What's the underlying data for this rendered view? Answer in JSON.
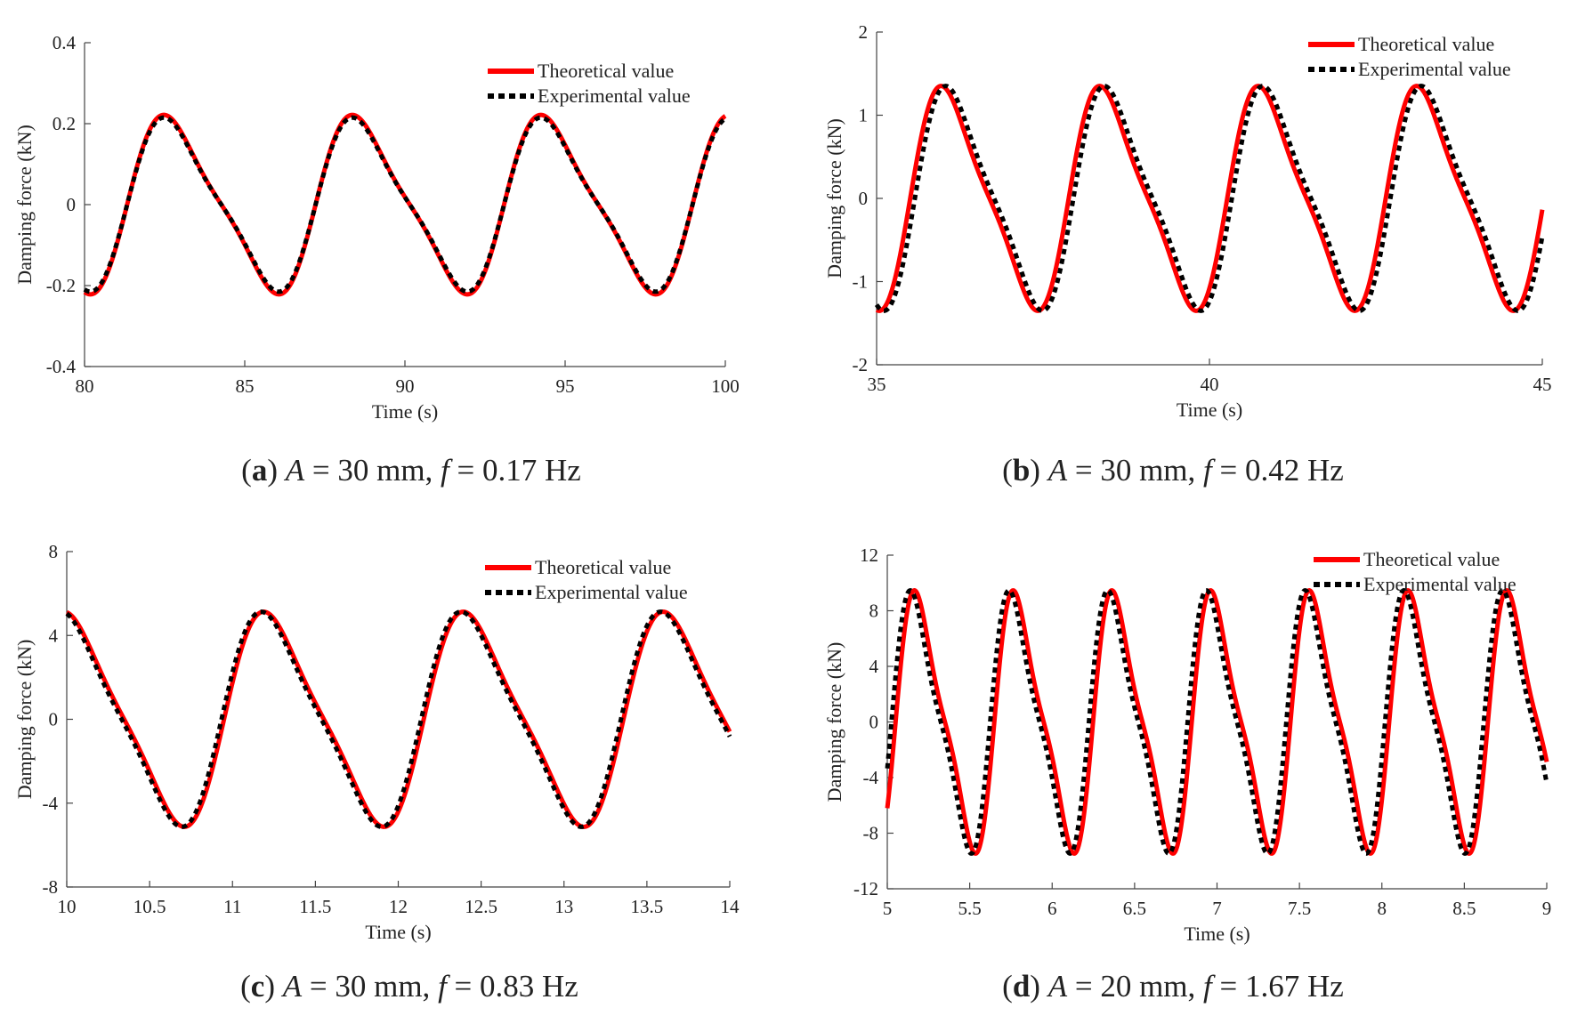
{
  "chart_data": [
    {
      "id": "a",
      "type": "line",
      "caption": {
        "letter": "a",
        "a_sym": "A",
        "a_val": " = 30 mm, ",
        "f_sym": "f",
        "f_val": " = 0.17 Hz"
      },
      "xlabel": "Time (s)",
      "ylabel": "Damping force (kN)",
      "xlim": [
        80,
        100
      ],
      "ylim": [
        -0.4,
        0.4
      ],
      "xticks": [
        80,
        85,
        90,
        95,
        100
      ],
      "xtick_labels": [
        "80",
        "85",
        "90",
        "95",
        "100"
      ],
      "yticks": [
        -0.4,
        -0.2,
        0,
        0.2,
        0.4
      ],
      "ytick_labels": [
        "-0.4",
        "-0.2",
        "0",
        "0.2",
        "0.4"
      ],
      "legend_position": "top-right",
      "model": {
        "amplitude": 0.205,
        "frequency": 0.17,
        "t_peak": 82.8,
        "shoulder": 0.22,
        "exp_phase_shift": 0.0,
        "exp_amp_factor": 0.97
      },
      "series": [
        {
          "name": "Theoretical value",
          "color": "#ff0000",
          "style": "solid"
        },
        {
          "name": "Experimental value",
          "color": "#000000",
          "style": "dotted"
        }
      ]
    },
    {
      "id": "b",
      "type": "line",
      "caption": {
        "letter": "b",
        "a_sym": "A",
        "a_val": " = 30 mm, ",
        "f_sym": "f",
        "f_val": " = 0.42 Hz"
      },
      "xlabel": "Time (s)",
      "ylabel": "Damping force (kN)",
      "xlim": [
        35,
        45
      ],
      "ylim": [
        -2,
        2
      ],
      "xticks": [
        35,
        40,
        45
      ],
      "xtick_labels": [
        "35",
        "40",
        "45"
      ],
      "yticks": [
        -2,
        -1,
        0,
        1,
        2
      ],
      "ytick_labels": [
        "-2",
        "-1",
        "0",
        "1",
        "2"
      ],
      "legend_position": "top-right",
      "model": {
        "amplitude": 1.25,
        "frequency": 0.42,
        "t_peak": 36.1,
        "shoulder": 0.22,
        "exp_phase_shift": 0.07,
        "exp_amp_factor": 1.0
      },
      "series": [
        {
          "name": "Theoretical value",
          "color": "#ff0000",
          "style": "solid"
        },
        {
          "name": "Experimental value",
          "color": "#000000",
          "style": "dotted"
        }
      ]
    },
    {
      "id": "c",
      "type": "line",
      "caption": {
        "letter": "c",
        "a_sym": "A",
        "a_val": " = 30 mm, ",
        "f_sym": "f",
        "f_val": " = 0.83 Hz"
      },
      "xlabel": "Time (s)",
      "ylabel": "Damping force (kN)",
      "xlim": [
        10,
        14
      ],
      "ylim": [
        -8,
        8
      ],
      "xticks": [
        10,
        10.5,
        11,
        11.5,
        12,
        12.5,
        13,
        13.5,
        14
      ],
      "xtick_labels": [
        "10",
        "10.5",
        "11",
        "11.5",
        "12",
        "12.5",
        "13",
        "13.5",
        "14"
      ],
      "yticks": [
        -8,
        -4,
        0,
        4,
        8
      ],
      "ytick_labels": [
        "-8",
        "-4",
        "0",
        "4",
        "8"
      ],
      "legend_position": "top-right",
      "model": {
        "amplitude": 4.8,
        "frequency": 0.83,
        "t_peak": 11.25,
        "shoulder": 0.2,
        "exp_phase_shift": -0.015,
        "exp_amp_factor": 1.0
      },
      "series": [
        {
          "name": "Theoretical value",
          "color": "#ff0000",
          "style": "solid"
        },
        {
          "name": "Experimental value",
          "color": "#000000",
          "style": "dotted"
        }
      ]
    },
    {
      "id": "d",
      "type": "line",
      "caption": {
        "letter": "d",
        "a_sym": "A",
        "a_val": " = 20 mm, ",
        "f_sym": "f",
        "f_val": " = 1.67 Hz"
      },
      "xlabel": "Time (s)",
      "ylabel": "Damping force (kN)",
      "xlim": [
        5,
        9
      ],
      "ylim": [
        -12,
        12
      ],
      "xticks": [
        5,
        5.5,
        6,
        6.5,
        7,
        7.5,
        8,
        8.5,
        9
      ],
      "xtick_labels": [
        "5",
        "5.5",
        "6",
        "6.5",
        "7",
        "7.5",
        "8",
        "8.5",
        "9"
      ],
      "yticks": [
        -12,
        -8,
        -4,
        0,
        4,
        8,
        12
      ],
      "ytick_labels": [
        "-12",
        "-8",
        "-4",
        "0",
        "4",
        "8",
        "12"
      ],
      "legend_position": "top-right",
      "model": {
        "amplitude": 8.6,
        "frequency": 1.67,
        "t_peak": 5.2,
        "shoulder": 0.25,
        "exp_phase_shift": -0.025,
        "exp_amp_factor": 1.0
      },
      "series": [
        {
          "name": "Theoretical value",
          "color": "#ff0000",
          "style": "solid"
        },
        {
          "name": "Experimental value",
          "color": "#000000",
          "style": "dotted"
        }
      ]
    }
  ]
}
